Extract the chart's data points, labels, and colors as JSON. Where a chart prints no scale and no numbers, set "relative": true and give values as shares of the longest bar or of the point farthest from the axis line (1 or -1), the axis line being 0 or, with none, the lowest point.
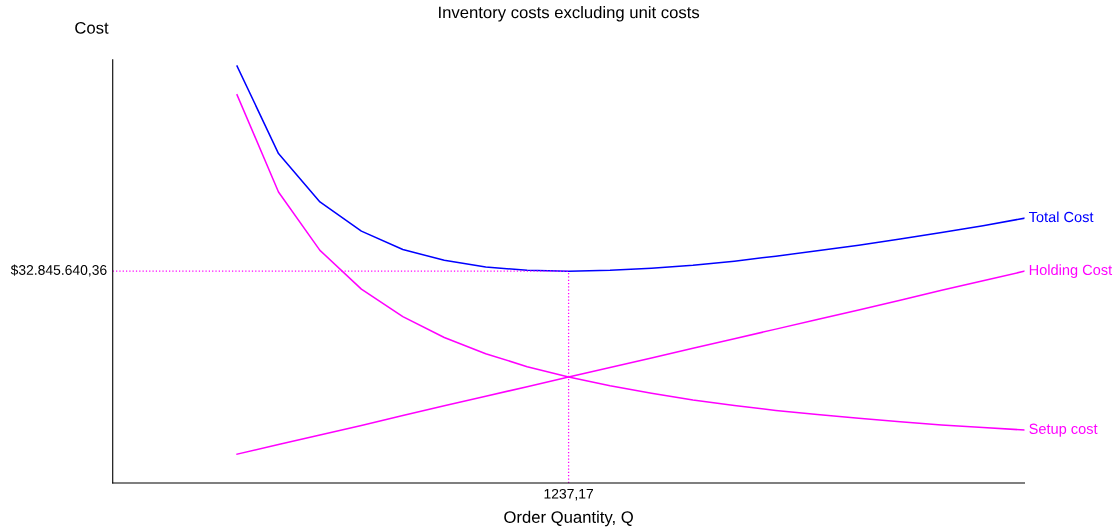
{
  "chart_data": {
    "type": "line",
    "title": "Inventory costs excluding unit costs",
    "xlabel": "Order Quantity, Q",
    "ylabel": "Cost",
    "relative": true,
    "categories": [
      null,
      null,
      null,
      null,
      null,
      null,
      null,
      null,
      null,
      null,
      null,
      null,
      null,
      null,
      null,
      null,
      null,
      null,
      null,
      null,
      null,
      null,
      null
    ],
    "series": [
      {
        "name": "Total Cost",
        "color": "#0000ff",
        "values": [
          null,
          null,
          null,
          1.0,
          0.79,
          0.674,
          0.604,
          0.56,
          0.534,
          0.518,
          0.51,
          0.508,
          0.51,
          0.515,
          0.522,
          0.532,
          0.544,
          0.557,
          0.57,
          0.585,
          0.601,
          0.617,
          0.635
        ]
      },
      {
        "name": "Holding Cost",
        "color": "#ff00ff",
        "values": [
          null,
          null,
          null,
          0.069,
          0.092,
          0.115,
          0.138,
          0.162,
          0.185,
          0.208,
          0.231,
          0.254,
          0.277,
          0.3,
          0.323,
          0.346,
          0.369,
          0.392,
          0.415,
          0.438,
          0.462,
          0.485,
          0.508
        ]
      },
      {
        "name": "Setup cost",
        "color": "#ff00ff",
        "values": [
          null,
          null,
          null,
          0.931,
          0.698,
          0.558,
          0.465,
          0.399,
          0.349,
          0.31,
          0.279,
          0.254,
          0.233,
          0.215,
          0.199,
          0.186,
          0.174,
          0.164,
          0.155,
          0.147,
          0.139,
          0.133,
          0.127
        ]
      }
    ],
    "ref_lines": [
      {
        "axis": "y",
        "value": 0.508,
        "color": "#ff00ff",
        "line_style": "dotted"
      }
    ],
    "annotations": [
      "$32.845.640,36",
      "1237,17"
    ],
    "legend": false,
    "marker": "none",
    "line_style": "solid"
  }
}
